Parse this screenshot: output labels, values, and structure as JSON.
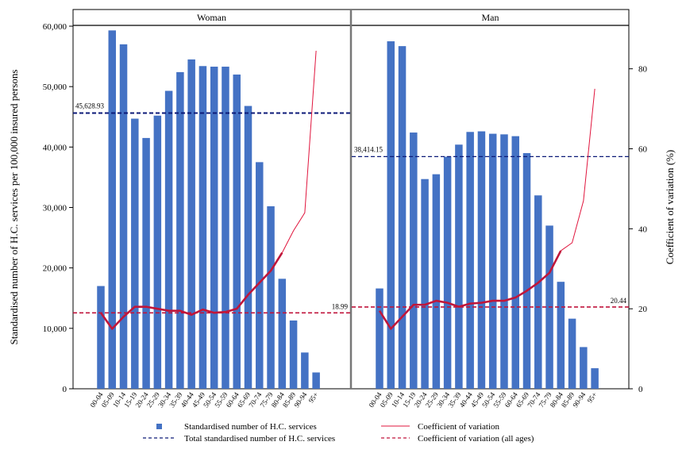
{
  "chart_data": {
    "type": "bar",
    "ylabel": "Standardised number of H.C. services per 100,000 insured persons",
    "y2label": "Coefficient of variation (%)",
    "ylim": [
      0,
      60000
    ],
    "y2lim": [
      0,
      90
    ],
    "yticks": [
      "0",
      "10,000",
      "20,000",
      "30,000",
      "40,000",
      "50,000",
      "60,000"
    ],
    "y2ticks": [
      "0",
      "20",
      "40",
      "60",
      "80"
    ],
    "categories": [
      "00-04",
      "05-09",
      "10-14",
      "15-19",
      "20-24",
      "25-29",
      "30-34",
      "35-39",
      "40-44",
      "45-49",
      "50-54",
      "55-59",
      "60-64",
      "65-69",
      "70-74",
      "75-79",
      "80-84",
      "85-89",
      "90-94",
      "95+"
    ],
    "panels": [
      {
        "title": "Woman",
        "bars": [
          17000,
          59300,
          57000,
          44700,
          41500,
          45200,
          49300,
          52400,
          54500,
          53400,
          53300,
          53300,
          52000,
          46800,
          37500,
          30200,
          18200,
          11300,
          6000,
          2700
        ],
        "cv": [
          19.0,
          15.0,
          18.0,
          20.5,
          20.5,
          20.0,
          19.5,
          19.5,
          18.5,
          19.8,
          19.0,
          19.2,
          20.0,
          23.5,
          26.5,
          29.5,
          34.0,
          39.5,
          44.0,
          84.5
        ],
        "total": 45628.93,
        "total_label": "45,628.93",
        "cv_all": 18.99,
        "cv_all_label": "18.99"
      },
      {
        "title": "Man",
        "bars": [
          16600,
          57500,
          56700,
          42400,
          34700,
          35500,
          38400,
          40400,
          42500,
          42600,
          42200,
          42100,
          41800,
          39000,
          32000,
          27000,
          17700,
          11600,
          6900,
          3400
        ],
        "cv": [
          19.5,
          15.0,
          18.0,
          21.0,
          21.0,
          22.0,
          21.5,
          20.5,
          21.3,
          21.5,
          22.0,
          22.0,
          22.8,
          24.5,
          26.5,
          29.0,
          34.5,
          36.5,
          47.0,
          75.0
        ],
        "total": 38414.15,
        "total_label": "38,414.15",
        "cv_all": 20.44,
        "cv_all_label": "20.44"
      }
    ],
    "legend": [
      {
        "key": "bars",
        "label": "Standardised number of H.C. services"
      },
      {
        "key": "cv",
        "label": "Coefficient of variation"
      },
      {
        "key": "total",
        "label": "Total standardised number of H.C. services"
      },
      {
        "key": "cv_all",
        "label": "Coefficient of variation (all ages)"
      }
    ],
    "legend_position": "bottom",
    "colors": {
      "bar": "#4472c4",
      "cv_line": "#e0143c",
      "cv_bold": "#c0163a",
      "total_line": "#0c1a78",
      "cv_all_line": "#c0143c"
    }
  }
}
